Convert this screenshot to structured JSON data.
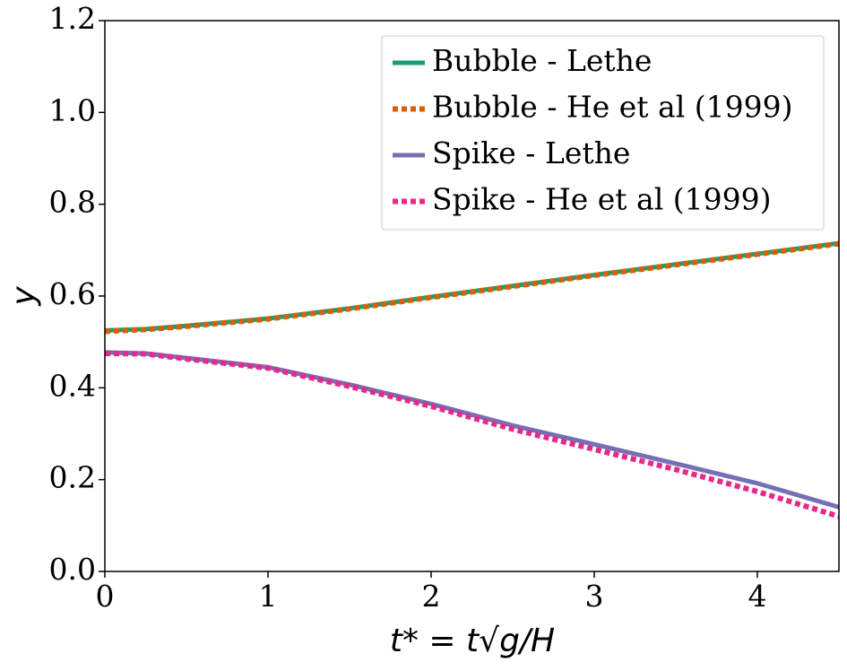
{
  "chart_data": {
    "type": "line",
    "xlabel": "t* = t√g/H",
    "ylabel": "y",
    "x": [
      0,
      0.25,
      0.5,
      1,
      1.5,
      2,
      2.5,
      3,
      3.5,
      4,
      4.5
    ],
    "series": [
      {
        "name": "Bubble - Lethe",
        "color": "#1b9e77",
        "style": "solid",
        "values": [
          0.525,
          0.528,
          0.535,
          0.551,
          0.573,
          0.598,
          0.622,
          0.646,
          0.669,
          0.692,
          0.715
        ]
      },
      {
        "name": "Bubble - He et al (1999)",
        "color": "#d95f02",
        "style": "dotted",
        "values": [
          0.523,
          0.527,
          0.534,
          0.55,
          0.572,
          0.597,
          0.621,
          0.645,
          0.668,
          0.691,
          0.714
        ]
      },
      {
        "name": "Spike - Lethe",
        "color": "#7570b3",
        "style": "solid",
        "values": [
          0.477,
          0.475,
          0.465,
          0.445,
          0.407,
          0.365,
          0.318,
          0.277,
          0.235,
          0.192,
          0.14
        ]
      },
      {
        "name": "Spike - He et al (1999)",
        "color": "#e7298a",
        "style": "dotted",
        "values": [
          0.475,
          0.474,
          0.463,
          0.443,
          0.403,
          0.36,
          0.31,
          0.266,
          0.222,
          0.174,
          0.12
        ]
      }
    ],
    "xlim": [
      0,
      4.5
    ],
    "xticks": [
      0,
      1,
      2,
      3,
      4
    ],
    "ylim": [
      0,
      1.2
    ],
    "yticks": [
      {
        "value": 0,
        "label": "0.0"
      },
      0.2,
      0.4,
      0.6,
      0.8,
      {
        "value": 1,
        "label": "1.0"
      },
      1.2
    ],
    "grid": false,
    "legend": "upper right"
  }
}
